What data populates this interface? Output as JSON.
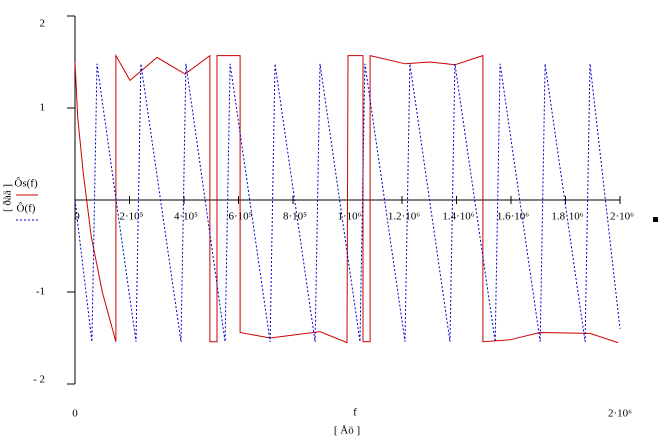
{
  "chart_data": {
    "type": "line",
    "x_label": "f",
    "x_unit": "[ Åö ]",
    "y_unit": "[ ðàä ]",
    "xlim": [
      0,
      2000000
    ],
    "xlim_labels": [
      "0",
      "2·10⁶"
    ],
    "ylim": [
      -2,
      2
    ],
    "yticks": [
      {
        "value": 2,
        "label": "2"
      },
      {
        "value": 1,
        "label": "1"
      },
      {
        "value": -1,
        "label": "-1"
      },
      {
        "value": -2,
        "label": "- 2"
      }
    ],
    "xticks": [
      {
        "value": 0,
        "label": "0"
      },
      {
        "value": 200000,
        "label": "2·10⁵"
      },
      {
        "value": 400000,
        "label": "4·10⁵"
      },
      {
        "value": 600000,
        "label": "6·10⁵"
      },
      {
        "value": 800000,
        "label": "8·10⁵"
      },
      {
        "value": 1000000,
        "label": "1·10⁶"
      },
      {
        "value": 1200000,
        "label": "1.2·10⁶"
      },
      {
        "value": 1400000,
        "label": "1.4·10⁶"
      },
      {
        "value": 1600000,
        "label": "1.6·10⁶"
      },
      {
        "value": 1800000,
        "label": "1.8·10⁶"
      },
      {
        "value": 2000000,
        "label": "2·10⁶"
      }
    ],
    "series": [
      {
        "name": "Ôs(f)",
        "color": "#cc0000",
        "dash": false,
        "x": [
          0,
          10000,
          30000,
          60000,
          100000,
          150000,
          150000,
          202000,
          301000,
          404000,
          495000,
          495000,
          521000,
          521000,
          606000,
          606000,
          716000,
          899000,
          998000,
          1002000,
          1057000,
          1057000,
          1083000,
          1083000,
          1211000,
          1303000,
          1394000,
          1497000,
          1497000,
          1596000,
          1706000,
          1890000,
          1993000
        ],
        "values": [
          1.5,
          0.9,
          0.3,
          -0.4,
          -1.0,
          -1.54,
          1.57,
          1.3,
          1.55,
          1.37,
          1.57,
          -1.54,
          -1.54,
          1.57,
          1.57,
          -1.44,
          -1.5,
          -1.43,
          -1.55,
          1.57,
          1.57,
          -1.54,
          -1.54,
          1.57,
          1.48,
          1.5,
          1.47,
          1.57,
          -1.54,
          -1.52,
          -1.44,
          -1.45,
          -1.55
        ]
      },
      {
        "name": "Ô(f)",
        "color": "#0000cc",
        "dash": true,
        "x": [
          0,
          62000,
          80700,
          224000,
          242000,
          389000,
          407000,
          551000,
          569000,
          716000,
          734000,
          881000,
          899000,
          1046000,
          1064000,
          1211000,
          1229000,
          1376000,
          1394000,
          1542000,
          1560000,
          1707000,
          1725000,
          1872000,
          1890000,
          2000000
        ],
        "values": [
          0,
          -1.54,
          1.48,
          -1.54,
          1.48,
          -1.54,
          1.48,
          -1.54,
          1.48,
          -1.54,
          1.48,
          -1.54,
          1.48,
          -1.54,
          1.48,
          -1.54,
          1.48,
          -1.54,
          1.48,
          -1.54,
          1.48,
          -1.54,
          1.48,
          -1.54,
          1.48,
          -1.4
        ]
      }
    ]
  }
}
